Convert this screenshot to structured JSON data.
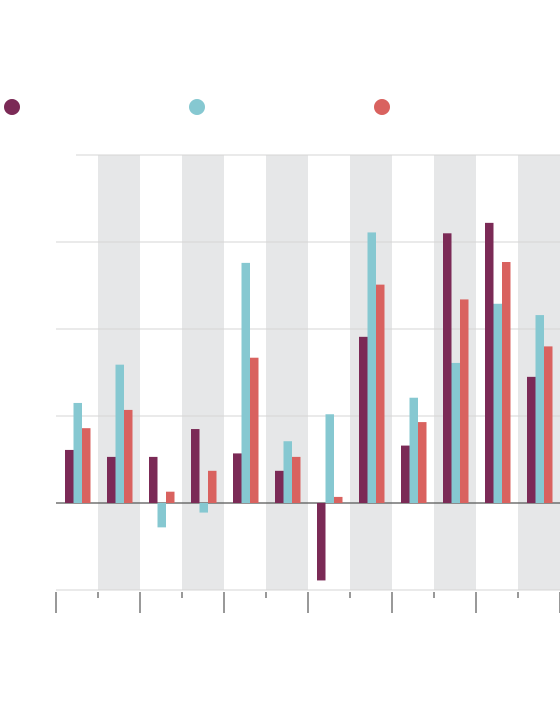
{
  "chart_data": {
    "type": "bar",
    "categories": [
      null,
      null,
      null,
      null,
      null,
      null,
      null,
      null,
      null,
      null,
      null,
      null
    ],
    "series": [
      {
        "color": "#7b2a56",
        "values": [
          6.1,
          5.3,
          5.3,
          8.5,
          5.7,
          3.7,
          -8.9,
          19.1,
          6.6,
          31.0,
          32.2,
          14.5
        ]
      },
      {
        "color": "#86c8d1",
        "values": [
          11.5,
          15.9,
          -2.8,
          -1.1,
          27.6,
          7.1,
          10.2,
          31.1,
          12.1,
          16.1,
          22.9,
          21.6
        ]
      },
      {
        "color": "#d9625f",
        "values": [
          8.6,
          10.7,
          1.3,
          3.7,
          16.7,
          5.3,
          0.7,
          25.1,
          9.3,
          23.4,
          27.7,
          18.0
        ]
      }
    ],
    "ylim": [
      -10,
      40
    ],
    "yticks": [
      -10,
      0,
      10,
      20,
      30,
      40
    ],
    "grid": true
  }
}
